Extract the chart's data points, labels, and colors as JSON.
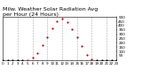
{
  "title": "Milw. Weather Solar Radiation Avg\nper Hour (24 Hours)",
  "background_color": "#ffffff",
  "plot_bg_color": "#ffffff",
  "grid_color": "#aaaaaa",
  "hours": [
    0,
    1,
    2,
    3,
    4,
    5,
    6,
    7,
    8,
    9,
    10,
    11,
    12,
    13,
    14,
    15,
    16,
    17,
    18,
    19,
    20,
    21,
    22,
    23
  ],
  "values": [
    0,
    0,
    0,
    0,
    0,
    2,
    28,
    85,
    170,
    270,
    370,
    450,
    480,
    440,
    360,
    270,
    160,
    65,
    10,
    1,
    0,
    0,
    0,
    0
  ],
  "dot_colors": [
    "#000000",
    "#000000",
    "#000000",
    "#000000",
    "#000000",
    "#cc0000",
    "#cc0000",
    "#cc0000",
    "#cc0000",
    "#cc0000",
    "#cc0000",
    "#cc0000",
    "#cc0000",
    "#cc0000",
    "#cc0000",
    "#cc0000",
    "#cc0000",
    "#cc0000",
    "#cc0000",
    "#000000",
    "#000000",
    "#000000",
    "#000000",
    "#000000"
  ],
  "ylim": [
    0,
    500
  ],
  "xlim": [
    0,
    23
  ],
  "ytick_values": [
    50,
    100,
    150,
    200,
    250,
    300,
    350,
    400,
    450,
    500
  ],
  "ytick_labels": [
    "50",
    "100",
    "150",
    "200",
    "250",
    "300",
    "350",
    "400",
    "450",
    "500"
  ],
  "xtick_values": [
    0,
    1,
    2,
    3,
    4,
    5,
    6,
    7,
    8,
    9,
    10,
    11,
    12,
    13,
    14,
    15,
    16,
    17,
    18,
    19,
    20,
    21,
    22,
    23
  ],
  "xtick_labels": [
    "0",
    "1",
    "2",
    "3",
    "4",
    "5",
    "6",
    "7",
    "8",
    "9",
    "10",
    "11",
    "12",
    "13",
    "14",
    "15",
    "16",
    "17",
    "18",
    "19",
    "20",
    "21",
    "22",
    "23"
  ],
  "title_fontsize": 4.5,
  "tick_fontsize": 3.0,
  "dot_size": 2.5,
  "vgrid_positions": [
    3,
    6,
    9,
    12,
    15,
    18,
    21
  ]
}
